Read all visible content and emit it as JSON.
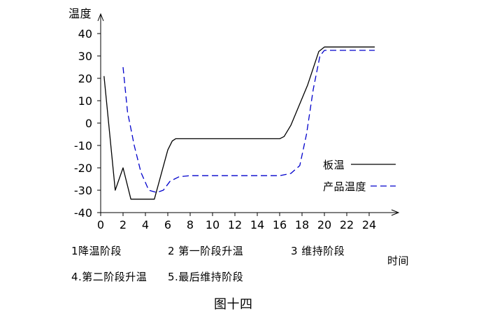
{
  "chart_data": {
    "type": "line",
    "ylabel": "温度",
    "xlabel": "时间",
    "caption": "图十四",
    "xlim": [
      0,
      26
    ],
    "ylim": [
      -40,
      40
    ],
    "x_ticks": [
      0,
      2,
      4,
      6,
      8,
      10,
      12,
      14,
      16,
      18,
      20,
      22,
      24
    ],
    "y_ticks": [
      40,
      30,
      20,
      10,
      0,
      -10,
      -20,
      -30,
      -40
    ],
    "x_tick_labels": [
      "0",
      "2",
      "4",
      "6",
      "8",
      "10",
      "12",
      "14",
      "16",
      "18",
      "20",
      "22",
      "24"
    ],
    "y_tick_labels": [
      "40",
      "30",
      "20",
      "10",
      "0",
      "-10",
      "-20",
      "-30",
      "-40"
    ],
    "grid": false,
    "legend_position": "right",
    "series": [
      {
        "name": "板温",
        "style": "solid",
        "color": "#000000",
        "x": [
          0.3,
          1.3,
          2.0,
          2.7,
          4.8,
          6.0,
          6.4,
          6.7,
          7.0,
          16.0,
          16.4,
          17.0,
          18.5,
          19.5,
          20.0,
          24.5
        ],
        "y": [
          21,
          -30,
          -20,
          -34,
          -34,
          -12,
          -8,
          -7,
          -7,
          -7,
          -6,
          -1,
          17,
          32,
          34,
          34
        ]
      },
      {
        "name": "产品温度",
        "style": "dashed",
        "color": "#0000cc",
        "x": [
          2.0,
          2.4,
          3.0,
          3.6,
          4.3,
          5.0,
          5.6,
          6.2,
          7.0,
          8.0,
          16.0,
          17.0,
          17.8,
          18.4,
          19.0,
          19.6,
          20.0,
          24.5
        ],
        "y": [
          25,
          5,
          -10,
          -22,
          -30,
          -31,
          -30,
          -26,
          -24,
          -23.5,
          -23.5,
          -22.5,
          -19,
          -5,
          15,
          30,
          32.5,
          32.5
        ]
      }
    ]
  },
  "notes": {
    "stage1": "1降温阶段",
    "stage2": "2 第一阶段升温",
    "stage3": "3 维持阶段",
    "stage4": "4.第二阶段升温",
    "stage5": "5.最后维持阶段"
  }
}
